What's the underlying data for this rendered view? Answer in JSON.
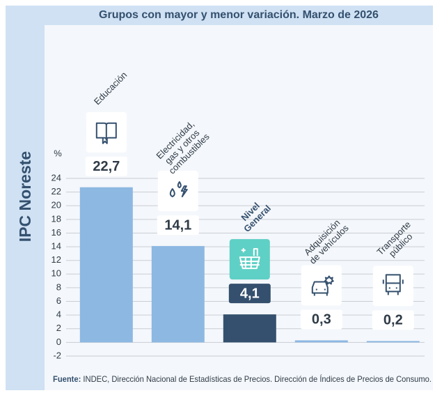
{
  "chart_data": {
    "type": "bar",
    "title": "Grupos con mayor y menor variación. Marzo de 2026",
    "side_label": "IPC Noreste",
    "y_label": "%",
    "categories": [
      "Educación",
      "Electricidad, gas y otros combustibles",
      "Nivel General",
      "Adquisición de vehículos",
      "Transporte público"
    ],
    "values": [
      22.7,
      14.1,
      4.1,
      0.3,
      0.2
    ],
    "value_labels": [
      "22,7",
      "14,1",
      "4,1",
      "0,3",
      "0,2"
    ],
    "colors": [
      "#8db8e2",
      "#8db8e2",
      "#34506e",
      "#8db8e2",
      "#8db8e2"
    ],
    "ylim": [
      -2,
      24
    ],
    "yticks": [
      -2,
      0,
      2,
      4,
      6,
      8,
      10,
      12,
      14,
      16,
      18,
      20,
      22,
      24
    ],
    "grid": true,
    "source_label": "Fuente:",
    "source": "INDEC, Dirección Nacional de Estadísticas de Precios. Dirección de Índices de Precios de Consumo."
  }
}
